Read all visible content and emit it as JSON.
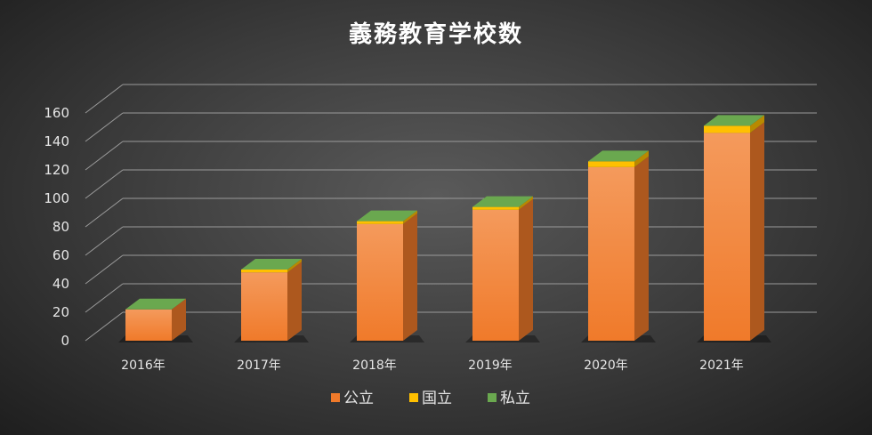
{
  "chart_data": {
    "type": "bar",
    "stacked": true,
    "three_d": true,
    "title": "義務教育学校数",
    "categories": [
      "2016年",
      "2017年",
      "2018年",
      "2019年",
      "2020年",
      "2021年"
    ],
    "series": [
      {
        "name": "公立",
        "values": [
          22,
          48,
          82,
          92,
          122,
          146
        ],
        "color": "#F07A2A"
      },
      {
        "name": "国立",
        "values": [
          0,
          2,
          2,
          2,
          4,
          5
        ],
        "color": "#FFC000"
      },
      {
        "name": "私立",
        "values": [
          0,
          0,
          0,
          0,
          0,
          0
        ],
        "color": "#6AA84F"
      }
    ],
    "ylim": [
      0,
      160
    ],
    "yticks": [
      0,
      20,
      40,
      60,
      80,
      100,
      120,
      140,
      160
    ],
    "grid": true,
    "legend_position": "bottom"
  }
}
